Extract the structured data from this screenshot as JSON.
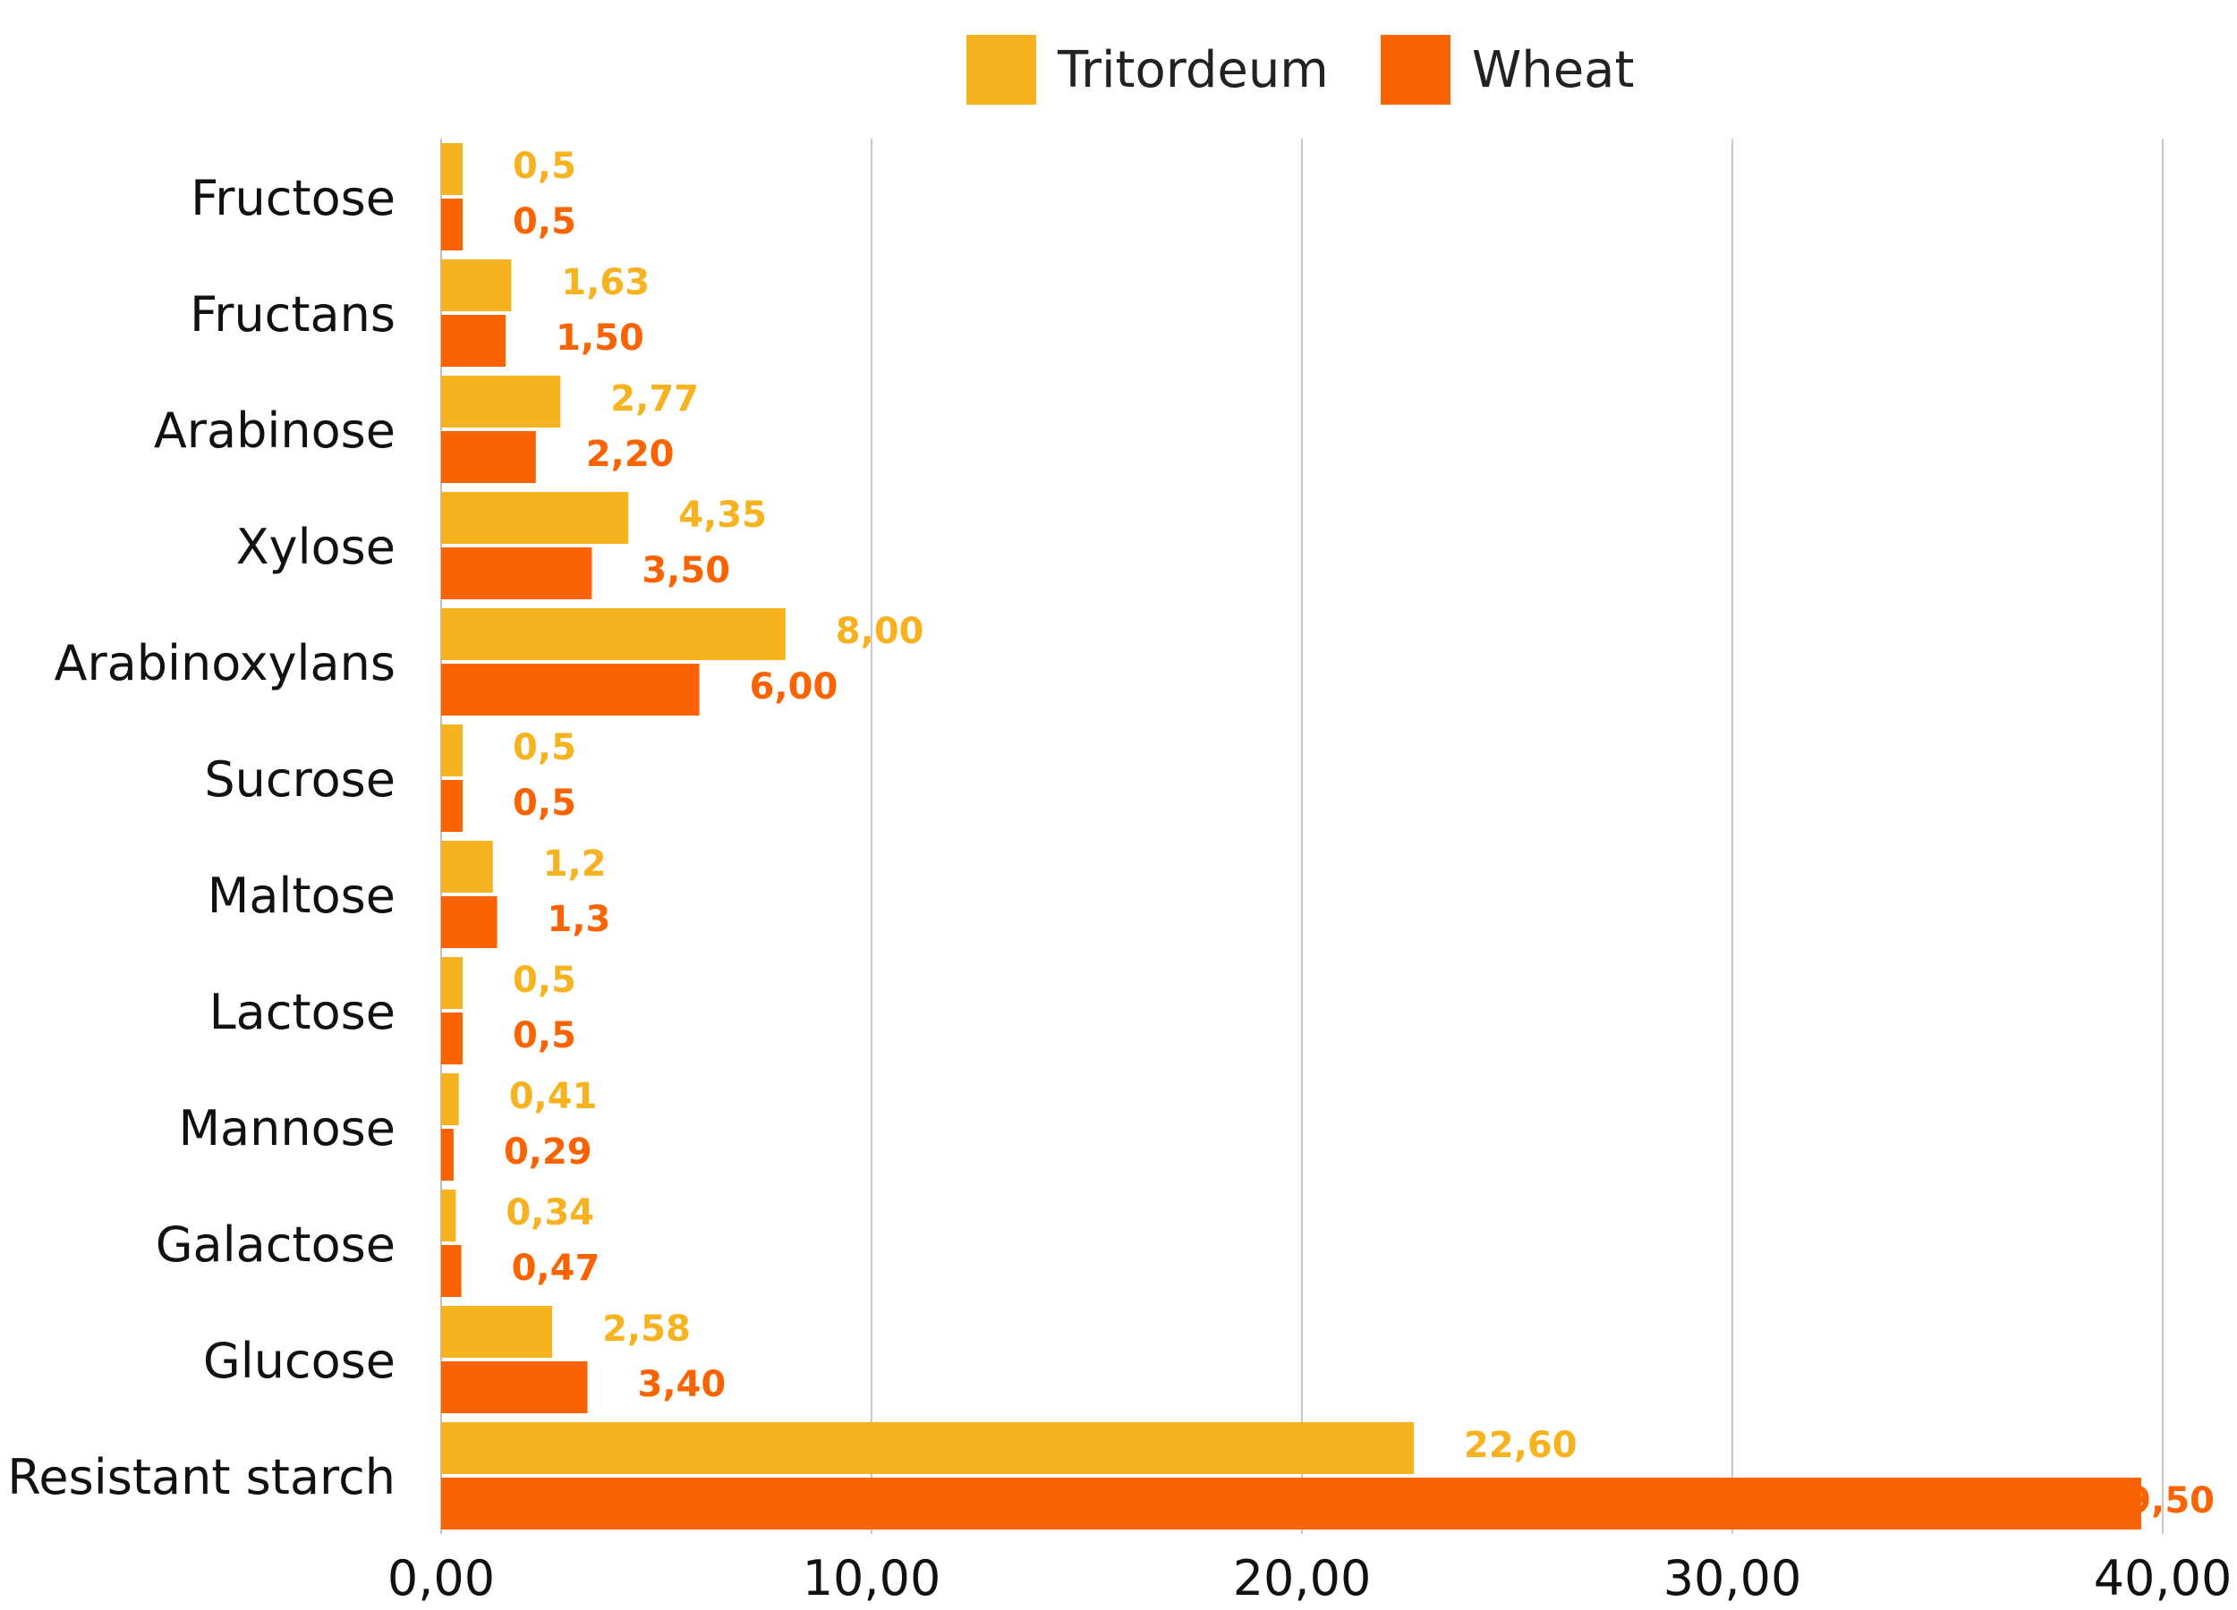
{
  "chart_data": {
    "type": "bar",
    "orientation": "horizontal",
    "title": "",
    "xlabel": "",
    "ylabel": "",
    "categories": [
      "Fructose",
      "Fructans",
      "Arabinose",
      "Xylose",
      "Arabinoxylans",
      "Sucrose",
      "Maltose",
      "Lactose",
      "Mannose",
      "Galactose",
      "Glucose",
      "Resistant starch"
    ],
    "series": [
      {
        "name": "Tritordeum",
        "color": "#F7B220",
        "values": [
          0.5,
          1.63,
          2.77,
          4.35,
          8.0,
          0.5,
          1.2,
          0.5,
          0.41,
          0.34,
          2.58,
          22.6
        ],
        "labels": [
          "0,5",
          "1,63",
          "2,77",
          "4,35",
          "8,00",
          "0,5",
          "1,2",
          "0,5",
          "0,41",
          "0,34",
          "2,58",
          "22,60"
        ]
      },
      {
        "name": "Wheat",
        "color": "#FB6300",
        "values": [
          0.5,
          1.5,
          2.2,
          3.5,
          6.0,
          0.5,
          1.3,
          0.5,
          0.29,
          0.47,
          3.4,
          39.5
        ],
        "labels": [
          "0,5",
          "1,50",
          "2,20",
          "3,50",
          "6,00",
          "0,5",
          "1,3",
          "0,5",
          "0,29",
          "0,47",
          "3,40",
          "39,50"
        ]
      }
    ],
    "xlim": [
      0,
      40
    ],
    "xticks": [
      0,
      10,
      20,
      30,
      40
    ],
    "xtick_labels": [
      "0,00",
      "10,00",
      "20,00",
      "30,00",
      "40,00"
    ],
    "grid": "vertical",
    "legend_position": "top-center"
  },
  "legend": {
    "items": [
      {
        "label": "Tritordeum",
        "color": "#F7B220"
      },
      {
        "label": "Wheat",
        "color": "#FB6300"
      }
    ]
  }
}
